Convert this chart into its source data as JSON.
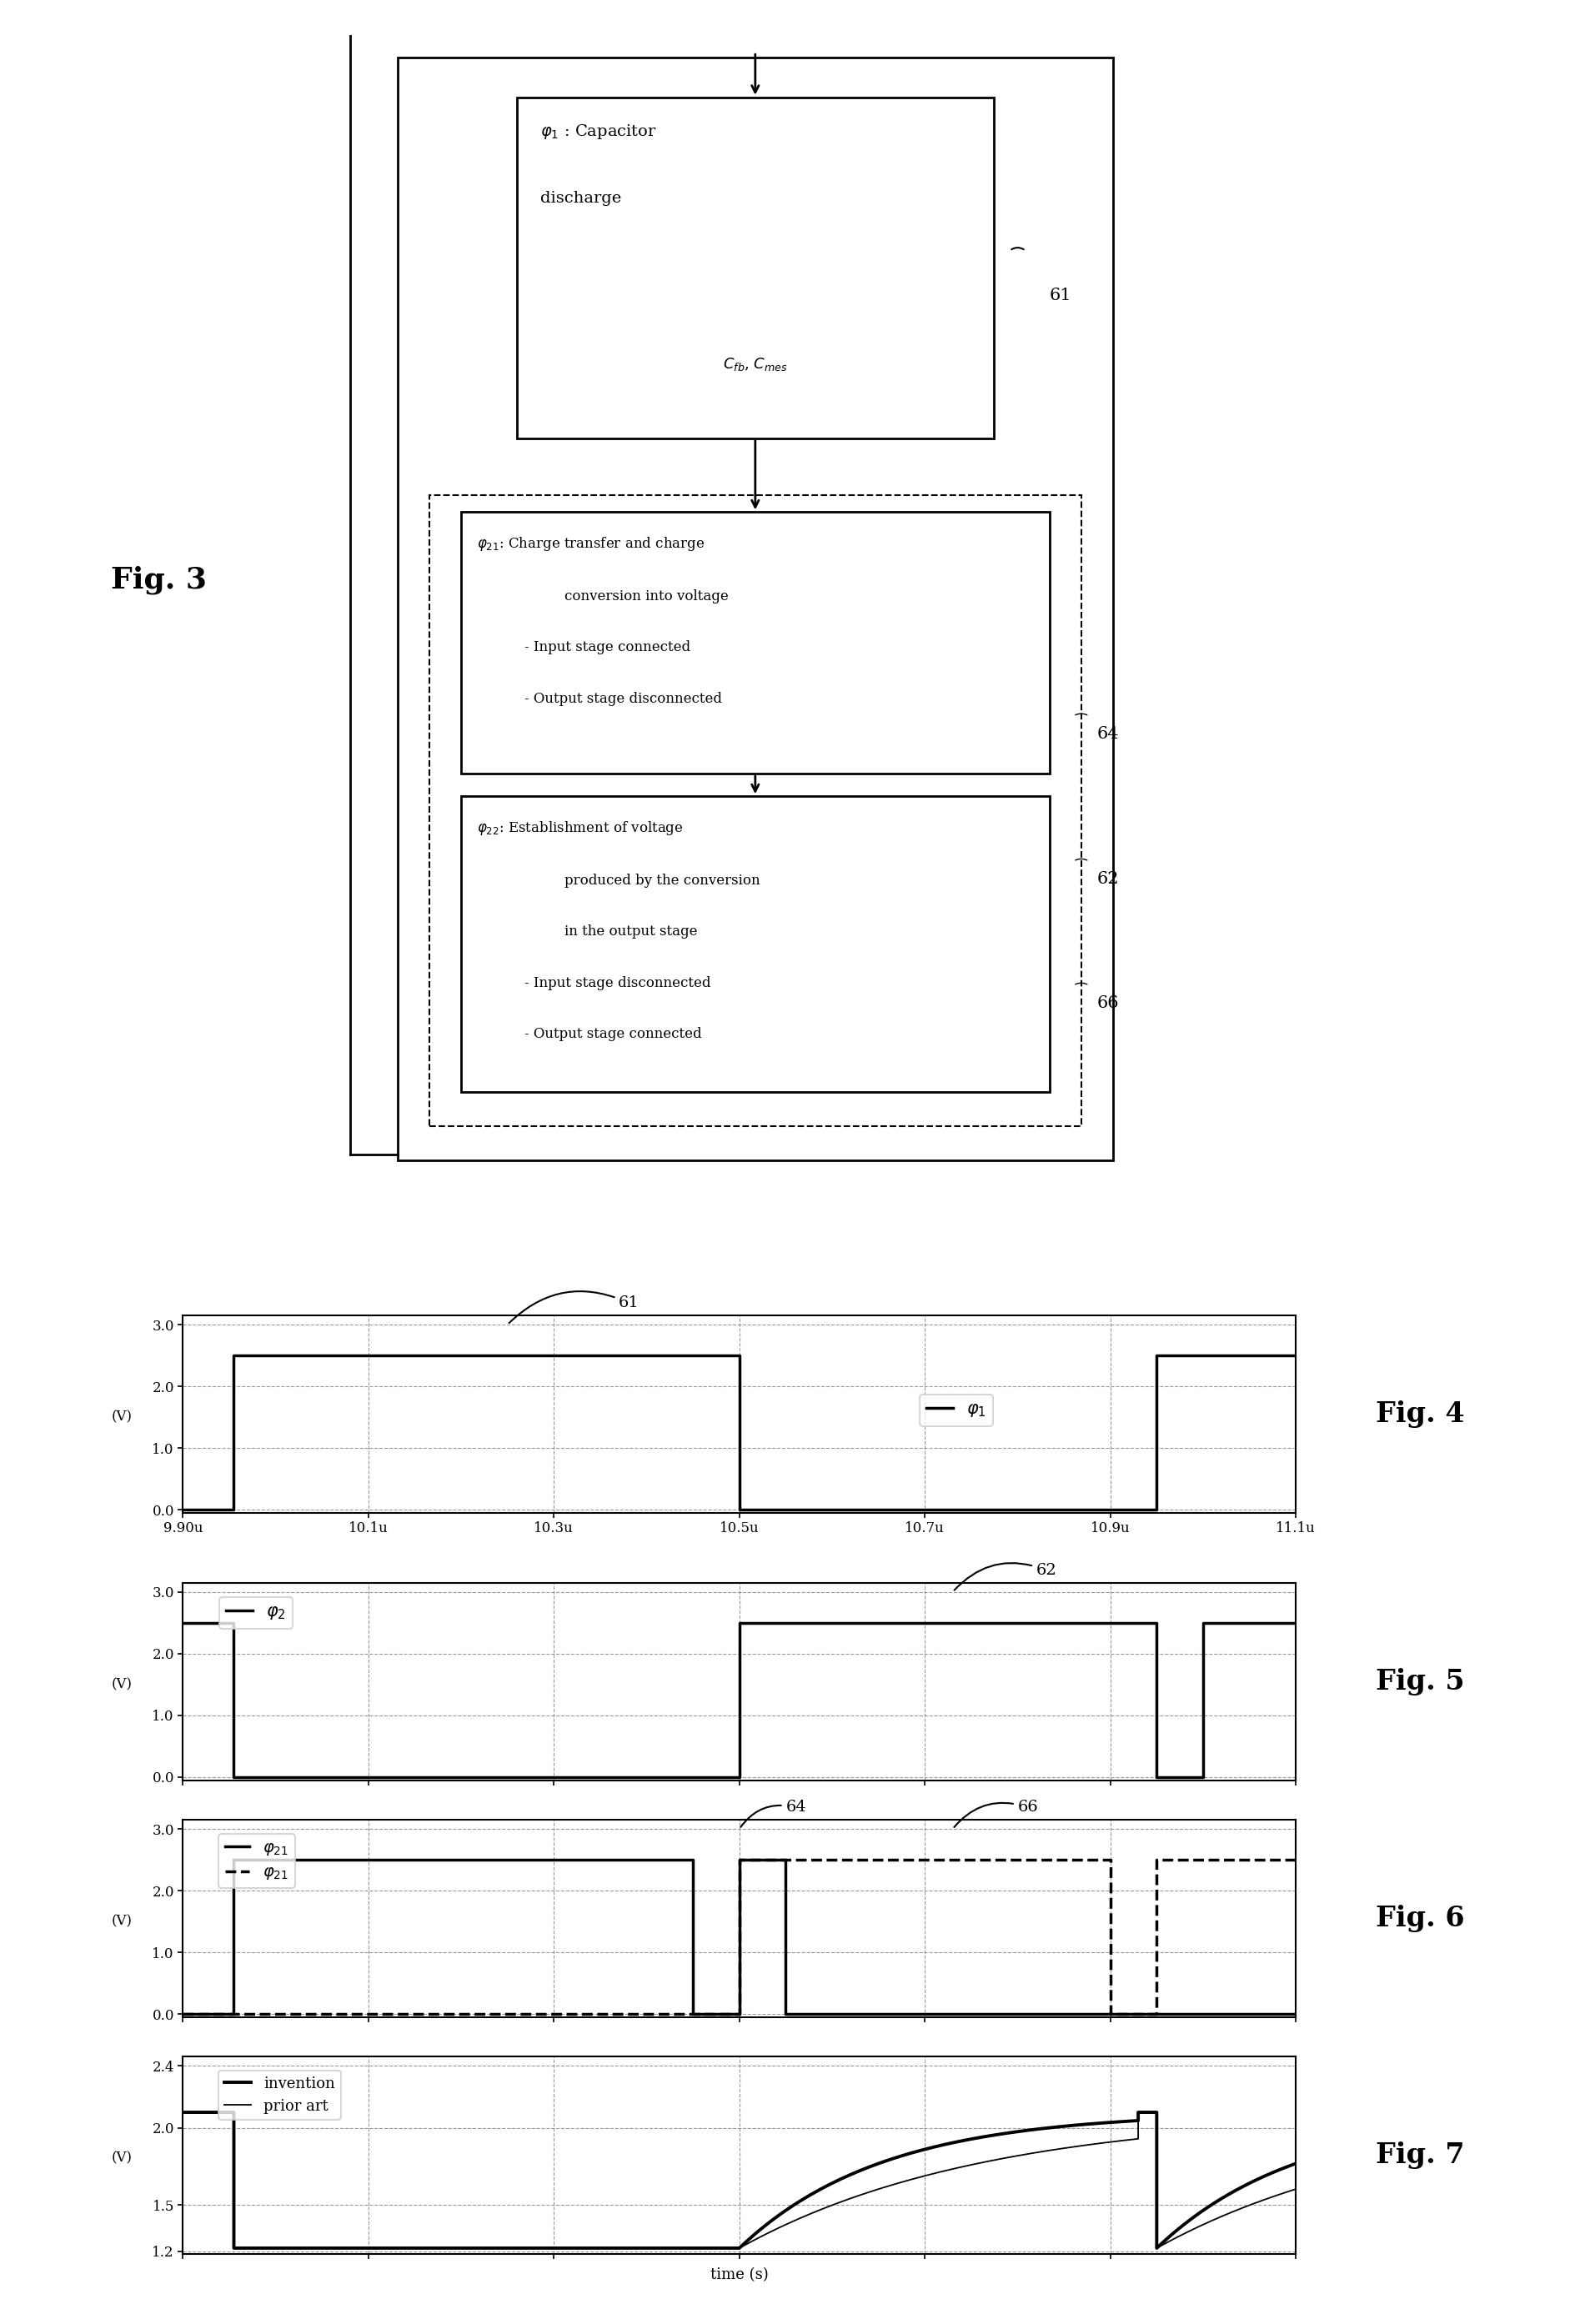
{
  "fig3_label": "Fig. 3",
  "fig4_label": "Fig. 4",
  "fig5_label": "Fig. 5",
  "fig6_label": "Fig. 6",
  "fig7_label": "Fig. 7",
  "xtick_labels": [
    "9.90u",
    "10.1u",
    "10.3u",
    "10.5u",
    "10.7u",
    "10.9u",
    "11.1u"
  ],
  "xtick_vals": [
    9.9,
    10.1,
    10.3,
    10.5,
    10.7,
    10.9,
    11.1
  ],
  "x_min": 9.9,
  "x_max": 11.1,
  "phi1_t": [
    9.9,
    9.955,
    9.955,
    10.5,
    10.5,
    10.95,
    10.95,
    11.1
  ],
  "phi1_v": [
    0.0,
    0.0,
    2.5,
    2.5,
    0.0,
    0.0,
    2.5,
    2.5
  ],
  "phi2_t": [
    9.9,
    9.9,
    9.955,
    9.955,
    10.5,
    10.5,
    10.95,
    10.95,
    11.0,
    11.0,
    11.1
  ],
  "phi2_v": [
    2.5,
    2.5,
    2.5,
    0.0,
    0.0,
    2.5,
    2.5,
    0.0,
    0.0,
    2.5,
    2.5
  ],
  "phi21s_t": [
    9.9,
    9.955,
    9.955,
    10.45,
    10.45,
    10.5,
    10.5,
    10.55,
    10.55,
    11.1
  ],
  "phi21s_v": [
    0.0,
    0.0,
    2.5,
    2.5,
    0.0,
    0.0,
    2.5,
    2.5,
    0.0,
    0.0
  ],
  "phi21d_t": [
    9.9,
    10.5,
    10.5,
    10.9,
    10.9,
    10.95,
    10.95,
    11.1
  ],
  "phi21d_v": [
    0.0,
    0.0,
    2.5,
    2.5,
    0.0,
    0.0,
    2.5,
    2.5
  ],
  "fig4_ref_x": 10.27,
  "fig5_ref_x": 10.72,
  "fig6_ref_x1": 10.52,
  "fig6_ref_x2": 10.72,
  "yticks_034": [
    0.0,
    1.0,
    2.0,
    3.0
  ],
  "ytick_labels_034": [
    "0.0",
    "1.0",
    "2.0",
    "3.0"
  ],
  "yticks_7": [
    1.2,
    1.5,
    2.0,
    2.4
  ],
  "ytick_labels_7": [
    "1.2",
    "1.5",
    "2.0",
    "2.4"
  ],
  "lw_signal": 2.5,
  "lw_grid": 0.8,
  "lw_spine": 1.5
}
